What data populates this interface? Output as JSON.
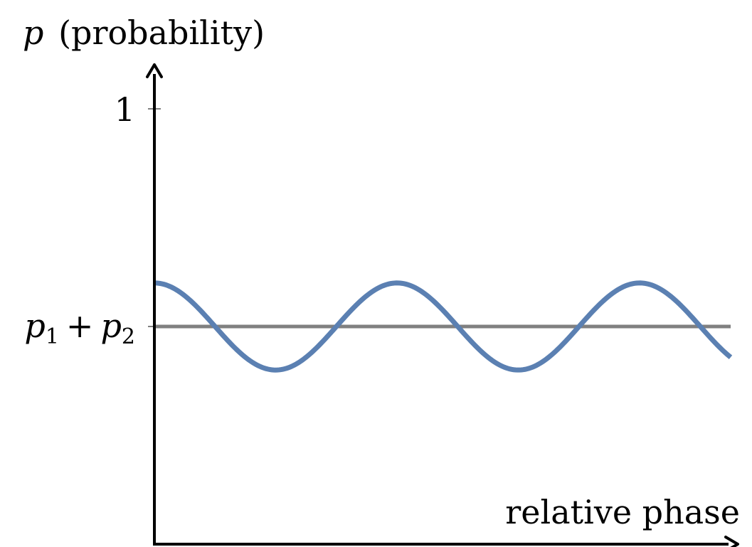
{
  "chart_data": {
    "type": "line",
    "ylabel": {
      "symbol": "p",
      "text": "(probability)"
    },
    "xlabel": "relative phase",
    "yticks": [
      {
        "value": 1,
        "label": "1"
      },
      {
        "value": 0.5,
        "label_symbol_a": "p",
        "label_sub_a": "1",
        "label_op": "+",
        "label_symbol_b": "p",
        "label_sub_b": "2"
      }
    ],
    "ylim": [
      0,
      1.1
    ],
    "xlim": [
      0,
      4.75
    ],
    "grid": false,
    "series": [
      {
        "role": "interference",
        "color": "#5b80b2",
        "baseline": 0.5,
        "amplitude": 0.1,
        "period": 2.0,
        "x": [
          0,
          0.25,
          0.5,
          0.75,
          1.0,
          1.25,
          1.5,
          1.75,
          2.0,
          2.25,
          2.5,
          2.75,
          3.0,
          3.25,
          3.5,
          3.75,
          4.0,
          4.25,
          4.5,
          4.75
        ],
        "y": [
          0.6,
          0.571,
          0.5,
          0.429,
          0.4,
          0.429,
          0.5,
          0.571,
          0.6,
          0.571,
          0.5,
          0.429,
          0.4,
          0.429,
          0.5,
          0.571,
          0.6,
          0.571,
          0.5,
          0.429
        ]
      },
      {
        "role": "sum",
        "color": "#808080",
        "x": [
          0,
          4.75
        ],
        "y": [
          0.5,
          0.5
        ]
      }
    ]
  }
}
